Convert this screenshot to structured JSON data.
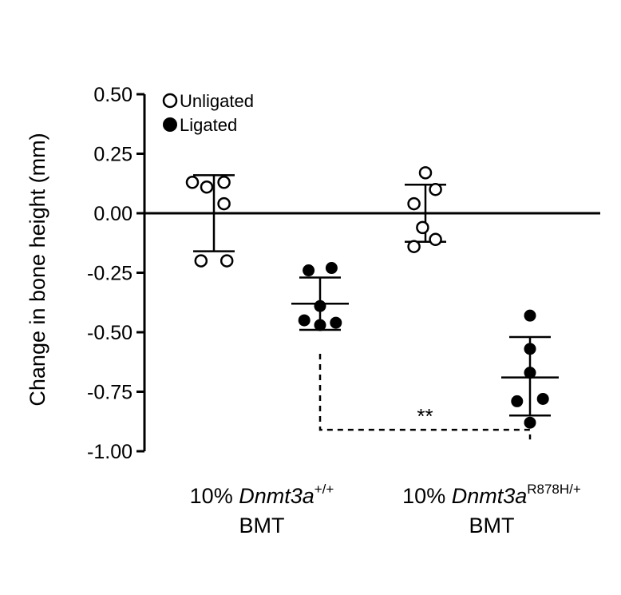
{
  "chart_data": {
    "type": "scatter",
    "ylabel": "Change in bone height (mm)",
    "ylim": [
      -1.0,
      0.5
    ],
    "yticks": [
      0.5,
      0.25,
      0.0,
      -0.25,
      -0.5,
      -0.75,
      -1.0
    ],
    "ytick_labels": [
      "0.50",
      "0.25",
      "0.00",
      "-0.25",
      "-0.50",
      "-0.75",
      "-1.00"
    ],
    "zero_line": true,
    "legend": {
      "placement": "top-left",
      "entries": [
        {
          "label": "Unligated",
          "marker": "open-circle"
        },
        {
          "label": "Ligated",
          "marker": "filled-circle"
        }
      ]
    },
    "groups": [
      {
        "label_prefix": "10% ",
        "label_italic": "Dnmt3a",
        "label_sup": "+/+",
        "label_line2": "BMT"
      },
      {
        "label_prefix": "10% ",
        "label_italic": "Dnmt3a",
        "label_sup": "R878H/+",
        "label_line2": "BMT"
      }
    ],
    "series": [
      {
        "name": "Unligated",
        "group": 0,
        "marker": "open",
        "points": [
          {
            "dx": -0.75,
            "y": 0.13
          },
          {
            "dx": -0.25,
            "y": 0.11
          },
          {
            "dx": 0.35,
            "y": 0.13
          },
          {
            "dx": 0.35,
            "y": 0.04
          },
          {
            "dx": -0.45,
            "y": -0.2
          },
          {
            "dx": 0.45,
            "y": -0.2
          }
        ],
        "mean": 0.0,
        "sd_low": -0.16,
        "sd_high": 0.16
      },
      {
        "name": "Ligated",
        "group": 0,
        "marker": "filled",
        "points": [
          {
            "dx": -0.4,
            "y": -0.24
          },
          {
            "dx": 0.4,
            "y": -0.23
          },
          {
            "dx": 0.0,
            "y": -0.39
          },
          {
            "dx": -0.55,
            "y": -0.45
          },
          {
            "dx": 0.0,
            "y": -0.47
          },
          {
            "dx": 0.55,
            "y": -0.46
          }
        ],
        "mean": -0.38,
        "sd_low": -0.49,
        "sd_high": -0.27
      },
      {
        "name": "Unligated",
        "group": 1,
        "marker": "open",
        "points": [
          {
            "dx": 0.0,
            "y": 0.17
          },
          {
            "dx": 0.35,
            "y": 0.1
          },
          {
            "dx": -0.4,
            "y": 0.04
          },
          {
            "dx": -0.1,
            "y": -0.06
          },
          {
            "dx": 0.35,
            "y": -0.11
          },
          {
            "dx": -0.4,
            "y": -0.14
          }
        ],
        "mean": 0.0,
        "sd_low": -0.12,
        "sd_high": 0.12
      },
      {
        "name": "Ligated",
        "group": 1,
        "marker": "filled",
        "points": [
          {
            "dx": 0.0,
            "y": -0.43
          },
          {
            "dx": 0.0,
            "y": -0.57
          },
          {
            "dx": 0.0,
            "y": -0.67
          },
          {
            "dx": -0.45,
            "y": -0.79
          },
          {
            "dx": 0.45,
            "y": -0.78
          },
          {
            "dx": 0.0,
            "y": -0.88
          }
        ],
        "mean": -0.69,
        "sd_low": -0.85,
        "sd_high": -0.52
      }
    ],
    "significance": {
      "label": "**",
      "between_series": [
        1,
        3
      ],
      "y": -0.91,
      "style": "dashed"
    }
  }
}
